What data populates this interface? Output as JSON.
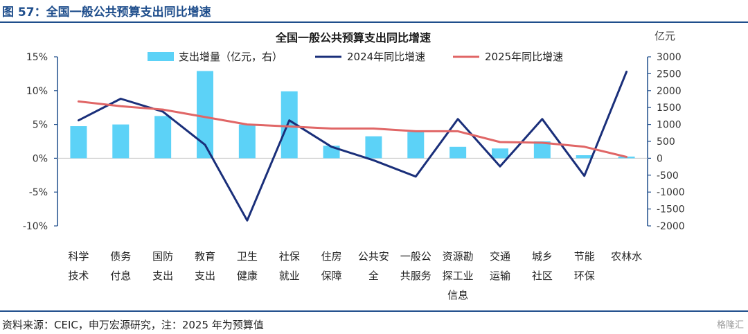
{
  "figure": {
    "title": "图 57：全国一般公共预算支出同比增速",
    "source": "资料来源：CEIC，申万宏源研究，注：2025 年为预算值",
    "watermark": "格隆汇"
  },
  "chart_data": {
    "type": "bar+line",
    "title": "全国一般公共预算支出同比增速",
    "y2_unit_label": "亿元",
    "categories": [
      [
        "科学",
        "技术"
      ],
      [
        "债务",
        "付息"
      ],
      [
        "国防",
        "支出"
      ],
      [
        "教育",
        "支出"
      ],
      [
        "卫生",
        "健康"
      ],
      [
        "社保",
        "就业"
      ],
      [
        "住房",
        "保障"
      ],
      [
        "公共安",
        "全"
      ],
      [
        "一般公",
        "共服务"
      ],
      [
        "资源勘",
        "探工业",
        "信息"
      ],
      [
        "交通",
        "运输"
      ],
      [
        "城乡",
        "社区"
      ],
      [
        "节能",
        "环保"
      ],
      [
        "农林水"
      ]
    ],
    "bar_series": {
      "name": "支出增量（亿元，右）",
      "axis": "right",
      "color": "#5cd2f7",
      "values": [
        950,
        1000,
        1250,
        2580,
        1000,
        1980,
        370,
        650,
        780,
        340,
        290,
        500,
        90,
        50
      ]
    },
    "line_series": [
      {
        "name": "2024年同比增速",
        "axis": "left",
        "color": "#1a2f7a",
        "values": [
          5.6,
          8.8,
          6.9,
          2.0,
          -9.2,
          5.6,
          1.7,
          -0.3,
          -2.7,
          5.8,
          -1.2,
          5.8,
          -2.6,
          12.8
        ]
      },
      {
        "name": "2025年同比增速",
        "axis": "left",
        "color": "#e06666",
        "values": [
          8.4,
          7.7,
          7.2,
          6.1,
          5.0,
          4.7,
          4.4,
          4.4,
          4.0,
          4.0,
          2.4,
          2.3,
          1.7,
          0.2
        ]
      }
    ],
    "y_left": {
      "min": -10,
      "max": 15,
      "step": 5,
      "ticks": [
        "15%",
        "10%",
        "5%",
        "0%",
        "-5%",
        "-10%"
      ]
    },
    "y_right": {
      "min": -2000,
      "max": 3000,
      "step": 500,
      "ticks": [
        "3000",
        "2500",
        "2000",
        "1500",
        "1000",
        "500",
        "0",
        "-500",
        "-1000",
        "-1500",
        "-2000"
      ]
    },
    "legend_position": "top"
  }
}
